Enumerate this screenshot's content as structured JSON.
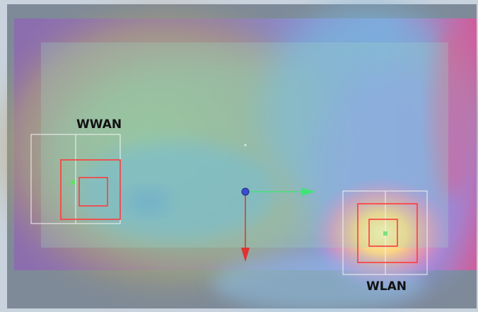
{
  "scene": {
    "labels": {
      "wwan": "WWAN",
      "wlan": "WLAN"
    },
    "colors": {
      "background": "#7e8a98",
      "frame": "#c9d3de",
      "marker_red": "#ff3b3b",
      "marker_white": "#f4f4f4",
      "axis_green": "#44e07a",
      "axis_red": "#e03030",
      "origin": "#3b4fd0"
    },
    "icons": {
      "origin": "sphere-origin-icon",
      "x_axis": "green-arrow-icon",
      "y_axis": "red-arrow-icon"
    }
  }
}
